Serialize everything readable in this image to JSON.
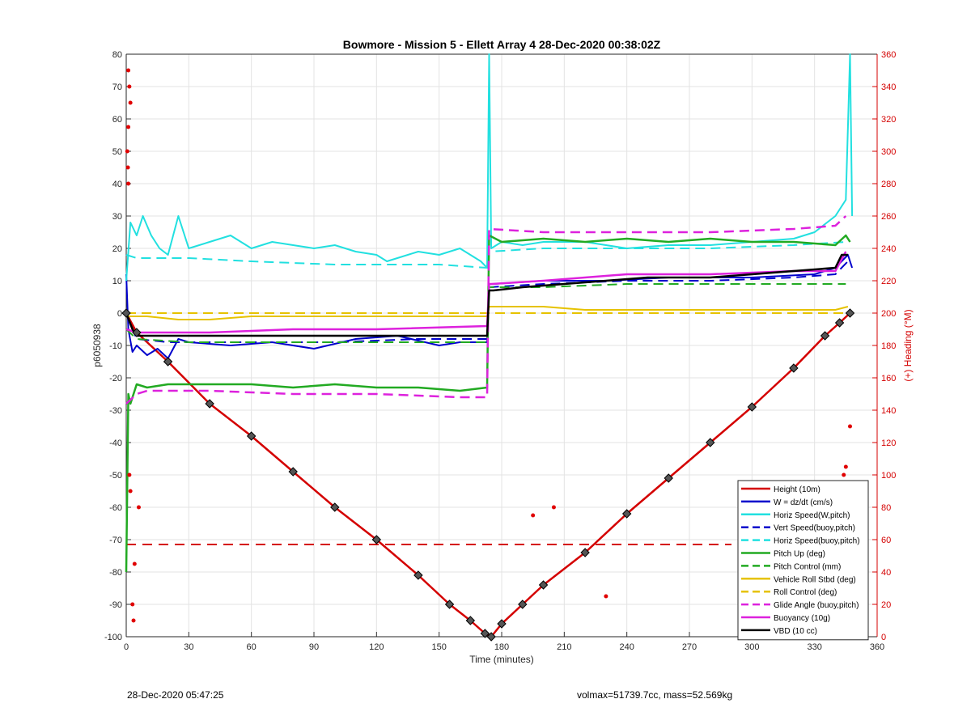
{
  "chart_data": {
    "type": "line",
    "title": "Bowmore - Mission 5 - Ellett Array 4 28-Dec-2020 00:38:02Z",
    "xlabel": "Time (minutes)",
    "ylabel": "p6050938",
    "ylabel_right": "(+) Heading (°M)",
    "xlim": [
      0,
      360
    ],
    "ylim": [
      -100,
      80
    ],
    "ylim_right": [
      0,
      360
    ],
    "xticks": [
      0,
      30,
      60,
      90,
      120,
      150,
      180,
      210,
      240,
      270,
      300,
      330,
      360
    ],
    "yticks": [
      -100,
      -90,
      -80,
      -70,
      -60,
      -50,
      -40,
      -30,
      -20,
      -10,
      0,
      10,
      20,
      30,
      40,
      50,
      60,
      70,
      80
    ],
    "yticks_right": [
      0,
      20,
      40,
      60,
      80,
      100,
      120,
      140,
      160,
      180,
      200,
      220,
      240,
      260,
      280,
      300,
      320,
      340,
      360
    ],
    "grid": true,
    "legend_position": "bottom-right",
    "series": [
      {
        "name": "Height (10m)",
        "color": "#d40000",
        "style": "solid",
        "width": 2.5,
        "x": [
          0,
          5,
          20,
          40,
          60,
          80,
          100,
          120,
          140,
          155,
          165,
          172,
          175,
          180,
          190,
          200,
          220,
          240,
          260,
          280,
          300,
          320,
          335,
          342,
          347
        ],
        "y": [
          0,
          -6,
          -15,
          -28,
          -38,
          -49,
          -60,
          -70,
          -81,
          -90,
          -95,
          -99,
          -100,
          -96,
          -90,
          -84,
          -74,
          -62,
          -51,
          -40,
          -29,
          -17,
          -7,
          -3,
          0
        ]
      },
      {
        "name": "W = dz/dt (cm/s)",
        "color": "#0000cc",
        "style": "solid",
        "width": 2,
        "x": [
          0,
          1,
          3,
          5,
          10,
          15,
          20,
          25,
          30,
          50,
          70,
          90,
          110,
          130,
          150,
          160,
          173,
          174,
          176,
          200,
          230,
          260,
          300,
          330,
          340,
          346,
          348
        ],
        "y": [
          12,
          -5,
          -12,
          -10,
          -13,
          -11,
          -14,
          -8,
          -9,
          -10,
          -9,
          -11,
          -8,
          -7,
          -10,
          -9,
          -9,
          9,
          9,
          10,
          10,
          11,
          11,
          12,
          14,
          18,
          14
        ]
      },
      {
        "name": "Horiz Speed(W,pitch)",
        "color": "#22e0e0",
        "style": "solid",
        "width": 2,
        "x": [
          0,
          2,
          5,
          8,
          12,
          16,
          20,
          25,
          30,
          40,
          50,
          60,
          70,
          80,
          90,
          100,
          110,
          120,
          125,
          130,
          140,
          150,
          160,
          170,
          173,
          174,
          175,
          180,
          190,
          200,
          220,
          240,
          260,
          280,
          300,
          320,
          330,
          340,
          345,
          347,
          348
        ],
        "y": [
          10,
          28,
          24,
          30,
          24,
          20,
          18,
          30,
          20,
          22,
          24,
          20,
          22,
          21,
          20,
          21,
          19,
          18,
          16,
          17,
          19,
          18,
          20,
          16,
          14,
          80,
          20,
          22,
          21,
          22,
          22,
          20,
          21,
          21,
          22,
          23,
          25,
          30,
          35,
          80,
          30
        ]
      },
      {
        "name": "Vert Speed(buoy,pitch)",
        "color": "#0000cc",
        "style": "dashed",
        "width": 2,
        "x": [
          0,
          5,
          20,
          60,
          100,
          140,
          173,
          174,
          200,
          240,
          280,
          320,
          340,
          346
        ],
        "y": [
          0,
          -8,
          -9,
          -9,
          -9,
          -8,
          -8,
          8,
          9,
          10,
          10,
          11,
          12,
          16
        ]
      },
      {
        "name": "Horiz Speed(buoy,pitch)",
        "color": "#22e0e0",
        "style": "dashed",
        "width": 2,
        "x": [
          0,
          5,
          30,
          60,
          100,
          130,
          150,
          173,
          174,
          200,
          240,
          280,
          320,
          345
        ],
        "y": [
          18,
          17,
          17,
          16,
          15,
          15,
          15,
          14,
          19,
          20,
          20,
          20,
          21,
          22
        ]
      },
      {
        "name": "Pitch Up (deg)",
        "color": "#22aa22",
        "style": "solid",
        "width": 2.5,
        "x": [
          0,
          1,
          2,
          5,
          10,
          20,
          40,
          60,
          80,
          100,
          120,
          140,
          160,
          173,
          174,
          180,
          200,
          220,
          240,
          260,
          280,
          300,
          320,
          340,
          345,
          347
        ],
        "y": [
          -80,
          -25,
          -28,
          -22,
          -23,
          -22,
          -22,
          -22,
          -23,
          -22,
          -23,
          -23,
          -24,
          -23,
          24,
          22,
          23,
          22,
          23,
          22,
          23,
          22,
          22,
          21,
          24,
          22
        ]
      },
      {
        "name": "Pitch Control (mm)",
        "color": "#22aa22",
        "style": "dashed",
        "width": 2,
        "x": [
          0,
          5,
          30,
          60,
          100,
          140,
          173,
          174,
          200,
          240,
          280,
          320,
          345
        ],
        "y": [
          -5,
          -8,
          -9,
          -9,
          -9,
          -9,
          -9,
          8,
          8,
          9,
          9,
          9,
          9
        ]
      },
      {
        "name": "Vehicle Roll Stbd (deg)",
        "color": "#e6c200",
        "style": "solid",
        "width": 2,
        "x": [
          0,
          5,
          10,
          25,
          40,
          60,
          80,
          100,
          120,
          140,
          160,
          173,
          174,
          180,
          200,
          220,
          240,
          260,
          280,
          300,
          320,
          340,
          346
        ],
        "y": [
          -1,
          -1,
          -1,
          -2,
          -2,
          -1,
          -1,
          -1,
          -1,
          -1,
          -1,
          -1,
          2,
          2,
          2,
          1,
          1,
          1,
          1,
          1,
          1,
          1,
          2
        ]
      },
      {
        "name": "Roll Control (deg)",
        "color": "#e6c200",
        "style": "dashed",
        "width": 2,
        "x": [
          0,
          40,
          80,
          120,
          173,
          174,
          200,
          240,
          280,
          320,
          346
        ],
        "y": [
          0,
          0,
          0,
          0,
          0,
          0,
          0,
          0,
          0,
          0,
          0
        ]
      },
      {
        "name": "Glide Angle (buoy,pitch)",
        "color": "#dd22dd",
        "style": "dashed",
        "width": 2.5,
        "x": [
          0,
          5,
          10,
          40,
          80,
          120,
          160,
          173,
          174,
          200,
          240,
          280,
          320,
          340,
          345
        ],
        "y": [
          -28,
          -25,
          -24,
          -24,
          -25,
          -25,
          -26,
          -26,
          26,
          25,
          25,
          25,
          26,
          27,
          30
        ]
      },
      {
        "name": "Buoyancy (10g)",
        "color": "#dd22dd",
        "style": "solid",
        "width": 2.5,
        "x": [
          0,
          5,
          8,
          40,
          80,
          120,
          173,
          174,
          175,
          200,
          240,
          280,
          320,
          340,
          345
        ],
        "y": [
          -5,
          -6,
          -6,
          -6,
          -5,
          -5,
          -4,
          9,
          9,
          10,
          12,
          12,
          13,
          13,
          19
        ]
      },
      {
        "name": "VBD (10 cc)",
        "color": "#000000",
        "style": "solid",
        "width": 2.5,
        "x": [
          0,
          3,
          5,
          10,
          60,
          120,
          172,
          173,
          174,
          176,
          190,
          230,
          250,
          280,
          300,
          320,
          340,
          343,
          346
        ],
        "y": [
          0,
          -5,
          -7,
          -7,
          -7,
          -7,
          -7,
          -7,
          7,
          7,
          8,
          10,
          11,
          11,
          12,
          13,
          14,
          18,
          18
        ]
      }
    ],
    "heading_dashed_level_right": 57,
    "heading_points_right": [
      {
        "x": 1,
        "y": 350
      },
      {
        "x": 1.5,
        "y": 340
      },
      {
        "x": 2,
        "y": 330
      },
      {
        "x": 1,
        "y": 315
      },
      {
        "x": 0.5,
        "y": 300
      },
      {
        "x": 0.8,
        "y": 290
      },
      {
        "x": 1,
        "y": 280
      },
      {
        "x": 1.5,
        "y": 100
      },
      {
        "x": 2,
        "y": 90
      },
      {
        "x": 3,
        "y": 20
      },
      {
        "x": 3.5,
        "y": 10
      },
      {
        "x": 4,
        "y": 45
      },
      {
        "x": 6,
        "y": 80
      },
      {
        "x": 347,
        "y": 130
      },
      {
        "x": 345,
        "y": 105
      },
      {
        "x": 344,
        "y": 100
      },
      {
        "x": 340,
        "y": 90
      },
      {
        "x": 230,
        "y": 25
      },
      {
        "x": 195,
        "y": 75
      },
      {
        "x": 205,
        "y": 80
      }
    ],
    "legend_entries": [
      "Height (10m)",
      "W = dz/dt (cm/s)",
      "Horiz Speed(W,pitch)",
      "Vert Speed(buoy,pitch)",
      "Horiz Speed(buoy,pitch)",
      "Pitch Up (deg)",
      "Pitch Control (mm)",
      "Vehicle Roll Stbd (deg)",
      "Roll Control (deg)",
      "Glide Angle (buoy,pitch)",
      "Buoyancy (10g)",
      "VBD (10 cc)"
    ]
  },
  "footer": {
    "timestamp": "28-Dec-2020 05:47:25",
    "info": "volmax=51739.7cc, mass=52.569kg"
  }
}
